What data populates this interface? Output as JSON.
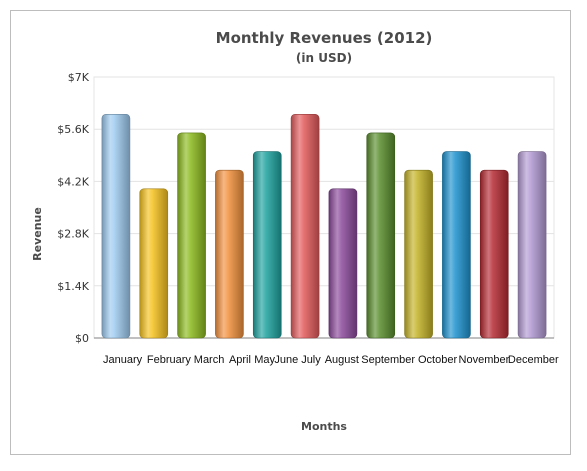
{
  "chart_data": {
    "type": "bar",
    "title": "Monthly Revenues (2012)",
    "subtitle": "(in USD)",
    "xlabel": "Months",
    "ylabel": "Revenue",
    "categories": [
      "January",
      "February",
      "March",
      "April",
      "May",
      "June",
      "July",
      "August",
      "September",
      "October",
      "November",
      "December"
    ],
    "values": [
      6000,
      4000,
      5500,
      4500,
      5000,
      6000,
      4000,
      5500,
      4500,
      5000,
      4500,
      5000
    ],
    "ylim": [
      0,
      7000
    ],
    "yticks": [
      0,
      1400,
      2800,
      4200,
      5600,
      7000
    ],
    "ytick_labels": [
      "$0",
      "$1.4K",
      "$2.8K",
      "$4.2K",
      "$5.6K",
      "$7K"
    ],
    "grid": true,
    "colors": [
      "#9ecbf0",
      "#f5c21f",
      "#8dbb1e",
      "#f2913e",
      "#1ea3a0",
      "#e35a5c",
      "#8c4a9c",
      "#5a8e2e",
      "#c4b227",
      "#1e93cf",
      "#b52b33",
      "#b39ad3"
    ]
  }
}
